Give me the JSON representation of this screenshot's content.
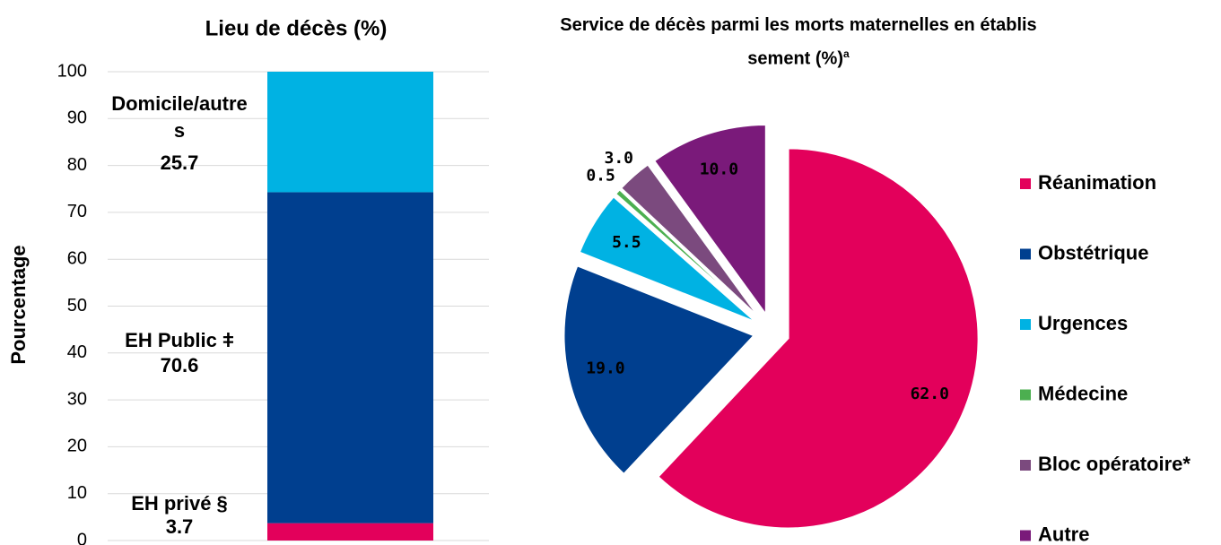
{
  "chart_data": [
    {
      "type": "stacked_bar",
      "title": "Lieu de décès (%)",
      "ylabel": "Pourcentage",
      "categories": [
        null
      ],
      "series": [
        {
          "name": "EH privé §",
          "color": "#e3005b",
          "values": [
            3.7
          ]
        },
        {
          "name": "EH Public ǂ",
          "color": "#003f8f",
          "values": [
            70.6
          ]
        },
        {
          "name": "Domicile/autres",
          "color": "#00b2e3",
          "values": [
            25.7
          ]
        }
      ],
      "ylim": [
        0,
        100
      ],
      "yticks": [
        0,
        10,
        20,
        30,
        40,
        50,
        60,
        70,
        80,
        90,
        100
      ],
      "grid": true
    },
    {
      "type": "pie",
      "title": "Service de décès parmi les morts maternelles en établissement (%)",
      "title_superscript": "a",
      "categories": [
        "Réanimation",
        "Obstétrique",
        "Urgences",
        "Médecine",
        "Bloc opératoire*",
        "Autre"
      ],
      "values": [
        62,
        19,
        5.5,
        0.5,
        3,
        10
      ],
      "value_labels": [
        "62.0",
        "19.0",
        "5.5",
        "0.5",
        "3.0",
        "10.0"
      ],
      "colors": [
        "#e3005b",
        "#003f8f",
        "#00b2e3",
        "#4caf50",
        "#7b4a7e",
        "#7a1a7a"
      ],
      "legend": "right"
    }
  ]
}
